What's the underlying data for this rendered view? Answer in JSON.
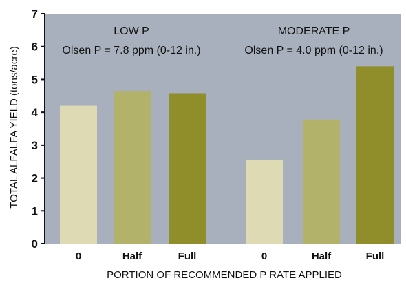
{
  "chart_data": {
    "type": "bar",
    "title": "",
    "xlabel": "PORTION OF RECOMMENDED P RATE APPLIED",
    "ylabel": "TOTAL ALFALFA YIELD (tons/acre)",
    "ylim": [
      0,
      7
    ],
    "yticks": [
      "0",
      "1",
      "2",
      "3",
      "4",
      "5",
      "6",
      "7"
    ],
    "grid": false,
    "background_color": "#a9b0bd",
    "groups": [
      {
        "name": "LOW P",
        "subtitle": "Olsen P = 7.8 ppm (0-12 in.)",
        "categories": [
          "0",
          "Half",
          "Full"
        ],
        "values": [
          4.2,
          4.65,
          4.58
        ]
      },
      {
        "name": "MODERATE P",
        "subtitle": "Olsen P = 4.0 ppm (0-12 in.)",
        "categories": [
          "0",
          "Half",
          "Full"
        ],
        "values": [
          2.55,
          3.78,
          5.4
        ]
      }
    ],
    "bar_colors": [
      "#dddab4",
      "#b3b26b",
      "#8f8e2a"
    ]
  }
}
